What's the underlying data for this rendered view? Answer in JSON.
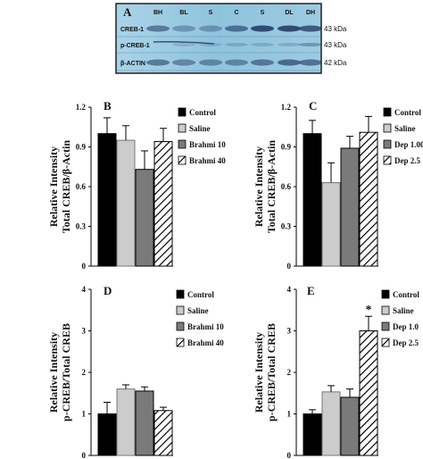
{
  "blot": {
    "letter": "A",
    "lanes": [
      "BH",
      "BL",
      "S",
      "C",
      "S",
      "DL",
      "DH"
    ],
    "rows": [
      {
        "name": "CREB-1",
        "kda": "43 kDa"
      },
      {
        "name": "p-CREB-1",
        "kda": "43 kDa"
      },
      {
        "name": "β-ACTIN",
        "kda": "42 kDa"
      }
    ],
    "colors": {
      "background": "#8fc3dc",
      "band": "#1e3560",
      "frame": "#222222"
    }
  },
  "colors": {
    "control": "#000000",
    "saline": "#cccccc",
    "group3": "#7a7a7a",
    "group4_hatch": "#000000",
    "error_bar": "#000000"
  },
  "chart_data": [
    {
      "panel": "B",
      "type": "bar",
      "ylabel_lines": [
        "Relative Intensity",
        "Total CREB/β-Actin"
      ],
      "ylim": [
        0,
        1.2
      ],
      "yticks": [
        "0",
        "0.3",
        "0.6",
        "0.9",
        "1.2"
      ],
      "categories": [
        "Control",
        "Saline",
        "Brahmi 10",
        "Brahmi 40"
      ],
      "values": [
        1.0,
        0.95,
        0.73,
        0.94
      ],
      "errors": [
        0.12,
        0.11,
        0.14,
        0.1
      ],
      "markers": [
        "",
        "",
        "",
        ""
      ]
    },
    {
      "panel": "C",
      "type": "bar",
      "ylabel_lines": [
        "Relative Intensity",
        "Total CREB/β-Actin"
      ],
      "ylim": [
        0,
        1.2
      ],
      "yticks": [
        "0",
        "0.3",
        "0.6",
        "0.9",
        "1.2"
      ],
      "categories": [
        "Control",
        "Saline",
        "Dep 1.00",
        "Dep 2.5"
      ],
      "values": [
        1.0,
        0.63,
        0.89,
        1.01
      ],
      "errors": [
        0.1,
        0.15,
        0.09,
        0.12
      ],
      "markers": [
        "",
        "",
        "",
        ""
      ]
    },
    {
      "panel": "D",
      "type": "bar",
      "ylabel_lines": [
        "Relative Intensity",
        "p-CREB/Total CREB"
      ],
      "ylim": [
        0,
        4
      ],
      "yticks": [
        "0",
        "1",
        "2",
        "3",
        "4"
      ],
      "categories": [
        "Control",
        "Saline",
        "Brahmi 10",
        "Brahmi 40"
      ],
      "values": [
        1.0,
        1.6,
        1.55,
        1.08
      ],
      "errors": [
        0.28,
        0.1,
        0.1,
        0.08
      ],
      "markers": [
        "",
        "",
        "",
        ""
      ]
    },
    {
      "panel": "E",
      "type": "bar",
      "ylabel_lines": [
        "Relative Intensity",
        "p-CREB/Total CREB"
      ],
      "ylim": [
        0,
        4
      ],
      "yticks": [
        "0",
        "1",
        "2",
        "3",
        "4"
      ],
      "categories": [
        "Control",
        "Saline",
        "Dep 1.0",
        "Dep 2.5"
      ],
      "values": [
        1.0,
        1.53,
        1.4,
        3.0
      ],
      "errors": [
        0.1,
        0.15,
        0.2,
        0.35
      ],
      "markers": [
        "",
        "",
        "",
        "*"
      ]
    }
  ]
}
